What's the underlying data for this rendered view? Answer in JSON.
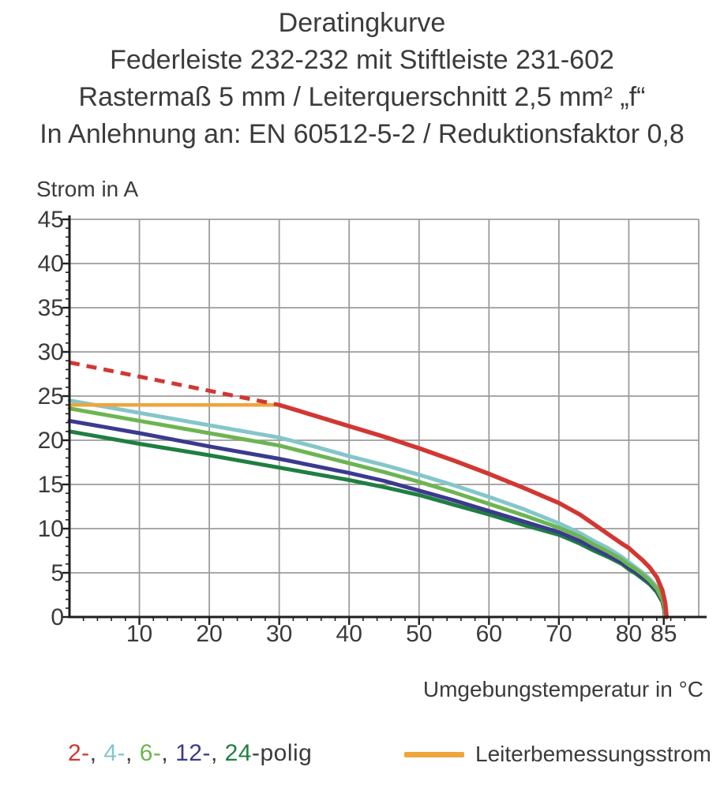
{
  "title": {
    "line1": "Deratingkurve",
    "line2": "Federleiste 232-232 mit Stiftleiste 231-602",
    "line3": "Rastermaß 5 mm / Leiterquerschnitt 2,5 mm² „f“",
    "line4": "In Anlehnung an: EN 60512-5-2 / Reduktionsfaktor 0,8"
  },
  "axes": {
    "y_title": "Strom in A",
    "x_title": "Umgebungstemperatur in °C"
  },
  "legend": {
    "poles": [
      {
        "label": "2-",
        "color": "#d23731"
      },
      {
        "label": "4-",
        "color": "#84c6ca"
      },
      {
        "label": "6-",
        "color": "#6cb551"
      },
      {
        "label": "12-",
        "color": "#3b3a8e"
      },
      {
        "label": "24",
        "color": "#1f7f42"
      }
    ],
    "separator": ", ",
    "suffix": "-polig",
    "rated_current_label": "Leiterbemessungsstrom",
    "rated_current_color": "#f0a43c"
  },
  "chart_data": {
    "type": "line",
    "title": "Deratingkurve",
    "xlabel": "Umgebungstemperatur in °C",
    "ylabel": "Strom in A",
    "xlim": [
      0,
      90
    ],
    "ylim": [
      0,
      45
    ],
    "grid": true,
    "x_major_ticks": [
      10,
      20,
      30,
      40,
      50,
      60,
      70,
      80,
      85
    ],
    "x_minor_step": 2,
    "x_grid_step": 10,
    "y_major_ticks": [
      0,
      5,
      10,
      15,
      20,
      25,
      30,
      35,
      40,
      45
    ],
    "y_minor_step": 1,
    "y_grid_step": 5,
    "series": [
      {
        "name": "24-polig",
        "color": "#1f7f42",
        "width": 5,
        "points": [
          [
            0,
            21.0
          ],
          [
            10,
            19.6
          ],
          [
            20,
            18.3
          ],
          [
            30,
            16.9
          ],
          [
            40,
            15.5
          ],
          [
            45,
            14.7
          ],
          [
            50,
            13.8
          ],
          [
            55,
            12.7
          ],
          [
            60,
            11.6
          ],
          [
            65,
            10.4
          ],
          [
            70,
            9.3
          ],
          [
            73,
            8.3
          ],
          [
            75,
            7.5
          ],
          [
            77,
            6.8
          ],
          [
            79,
            6.0
          ],
          [
            80,
            5.4
          ],
          [
            81,
            4.9
          ],
          [
            82,
            4.3
          ],
          [
            83,
            3.7
          ],
          [
            84,
            2.8
          ],
          [
            84.8,
            1.7
          ],
          [
            85.05,
            0.8
          ],
          [
            85.15,
            0
          ]
        ]
      },
      {
        "name": "12-polig",
        "color": "#3b3a8e",
        "width": 5,
        "points": [
          [
            0,
            22.2
          ],
          [
            10,
            20.8
          ],
          [
            20,
            19.3
          ],
          [
            30,
            17.9
          ],
          [
            40,
            16.3
          ],
          [
            45,
            15.4
          ],
          [
            50,
            14.3
          ],
          [
            55,
            13.2
          ],
          [
            60,
            12.0
          ],
          [
            65,
            10.8
          ],
          [
            70,
            9.6
          ],
          [
            73,
            8.6
          ],
          [
            75,
            7.8
          ],
          [
            77,
            7.0
          ],
          [
            79,
            6.2
          ],
          [
            80,
            5.6
          ],
          [
            81,
            5.1
          ],
          [
            82,
            4.5
          ],
          [
            83,
            3.9
          ],
          [
            84,
            3.0
          ],
          [
            84.8,
            1.9
          ],
          [
            85.1,
            0.9
          ],
          [
            85.2,
            0
          ]
        ]
      },
      {
        "name": "4-polig",
        "color": "#84c6ca",
        "width": 5,
        "points": [
          [
            0,
            24.5
          ],
          [
            10,
            23.1
          ],
          [
            20,
            21.7
          ],
          [
            30,
            20.3
          ],
          [
            35,
            19.3
          ],
          [
            40,
            18.2
          ],
          [
            45,
            17.2
          ],
          [
            50,
            16.1
          ],
          [
            55,
            14.9
          ],
          [
            60,
            13.6
          ],
          [
            65,
            12.2
          ],
          [
            70,
            10.6
          ],
          [
            73,
            9.5
          ],
          [
            75,
            8.6
          ],
          [
            77,
            7.8
          ],
          [
            79,
            6.8
          ],
          [
            80,
            6.2
          ],
          [
            81,
            5.6
          ],
          [
            82,
            5.0
          ],
          [
            83,
            4.3
          ],
          [
            84,
            3.4
          ],
          [
            84.8,
            2.2
          ],
          [
            85.1,
            1.1
          ],
          [
            85.25,
            0
          ]
        ]
      },
      {
        "name": "6-polig",
        "color": "#6cb551",
        "width": 5,
        "points": [
          [
            0,
            23.6
          ],
          [
            10,
            22.2
          ],
          [
            20,
            20.8
          ],
          [
            30,
            19.4
          ],
          [
            40,
            17.4
          ],
          [
            45,
            16.4
          ],
          [
            50,
            15.3
          ],
          [
            55,
            14.1
          ],
          [
            60,
            12.8
          ],
          [
            65,
            11.5
          ],
          [
            70,
            10.1
          ],
          [
            73,
            9.1
          ],
          [
            75,
            8.2
          ],
          [
            77,
            7.4
          ],
          [
            79,
            6.5
          ],
          [
            80,
            5.9
          ],
          [
            81,
            5.4
          ],
          [
            82,
            4.8
          ],
          [
            83,
            4.1
          ],
          [
            84,
            3.2
          ],
          [
            84.8,
            2.0
          ],
          [
            85.15,
            1.0
          ],
          [
            85.3,
            0
          ]
        ]
      },
      {
        "name": "Leiterbemessungsstrom",
        "color": "#f0a43c",
        "width": 4.5,
        "points": [
          [
            0,
            24
          ],
          [
            29.8,
            24
          ]
        ]
      },
      {
        "name": "2-polig (gestrichelt)",
        "color": "#d23731",
        "width": 5,
        "dash": "13 9",
        "points": [
          [
            0,
            28.8
          ],
          [
            30,
            24
          ]
        ]
      },
      {
        "name": "2-polig",
        "color": "#d23731",
        "width": 5.5,
        "points": [
          [
            30,
            24
          ],
          [
            35,
            22.8
          ],
          [
            40,
            21.6
          ],
          [
            45,
            20.4
          ],
          [
            50,
            19.1
          ],
          [
            55,
            17.7
          ],
          [
            60,
            16.2
          ],
          [
            65,
            14.6
          ],
          [
            70,
            12.9
          ],
          [
            73,
            11.6
          ],
          [
            75,
            10.5
          ],
          [
            77,
            9.4
          ],
          [
            79,
            8.3
          ],
          [
            80,
            7.8
          ],
          [
            81,
            7.1
          ],
          [
            82,
            6.4
          ],
          [
            83,
            5.6
          ],
          [
            84,
            4.5
          ],
          [
            84.8,
            3.0
          ],
          [
            85.2,
            1.6
          ],
          [
            85.4,
            0
          ]
        ]
      }
    ],
    "legend_entries": [
      "2-",
      "4-",
      "6-",
      "12-",
      "24-polig",
      "Leiterbemessungsstrom"
    ],
    "legend_position": "bottom"
  }
}
